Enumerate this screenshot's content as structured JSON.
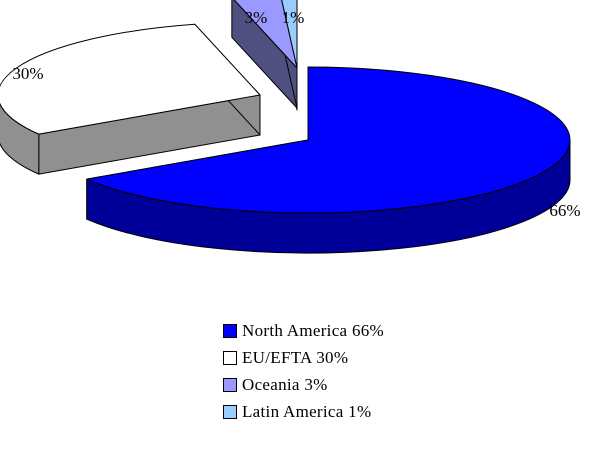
{
  "chart_data": {
    "type": "pie",
    "title": "",
    "categories": [
      "North America 66%",
      "EU/EFTA 30%",
      "Oceania 3%",
      "Latin America 1%"
    ],
    "values": [
      66,
      30,
      3,
      1
    ],
    "data_labels": [
      "66%",
      "30%",
      "3%",
      "1%"
    ],
    "colors": {
      "North America 66%": "#0000ff",
      "EU/EFTA 30%": "#ffffff",
      "Oceania 3%": "#9999ff",
      "Latin America 1%": "#99ccff"
    },
    "side_colors": {
      "North America 66%": "#000099",
      "EU/EFTA 30%": "#909090",
      "Oceania 3%": "#505080",
      "Latin America 1%": "#506680"
    },
    "style": "3d-exploded",
    "legend_position": "bottom"
  }
}
